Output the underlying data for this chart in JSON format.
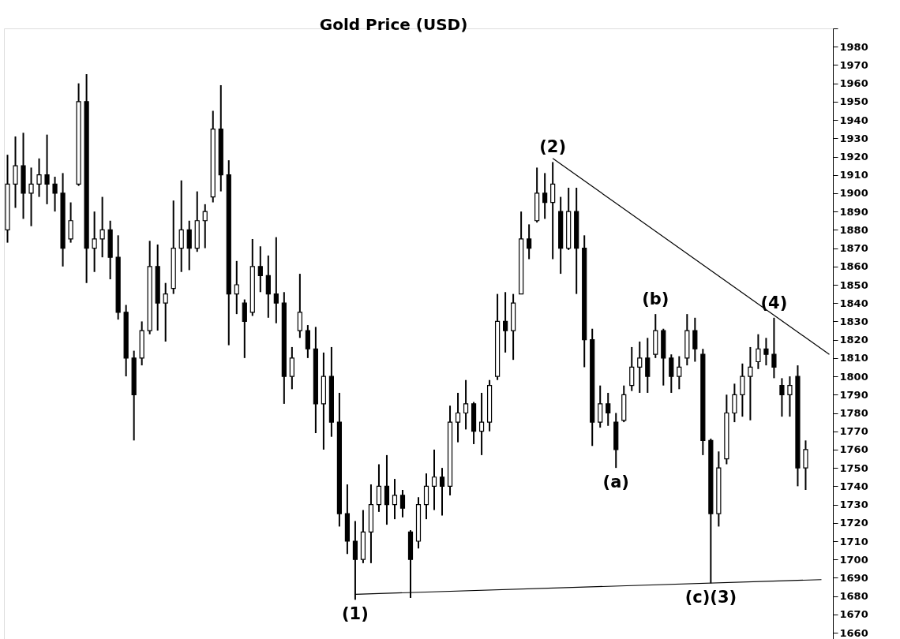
{
  "chart_data": {
    "type": "candlestick",
    "title": "Gold Price (USD)",
    "color": "#000000",
    "categories": [
      null,
      null,
      null,
      null,
      null,
      null,
      null,
      null,
      null,
      null,
      null,
      null,
      null,
      null,
      null,
      null,
      null,
      null,
      null,
      null,
      null,
      null,
      null,
      null,
      null,
      null,
      null,
      null,
      null,
      null,
      null,
      null,
      null,
      null,
      null,
      null,
      null,
      null,
      null,
      null,
      null,
      null,
      null,
      null,
      null,
      null,
      null,
      null,
      null,
      null,
      null,
      null,
      null,
      null,
      null,
      null,
      null,
      null,
      null,
      null,
      null,
      null,
      null,
      null,
      null,
      null,
      null,
      null,
      null,
      null,
      null,
      null,
      null,
      null,
      null,
      null,
      null,
      null,
      null,
      null,
      null,
      null,
      null,
      null,
      null,
      null,
      null,
      null,
      null,
      null,
      null,
      null,
      null,
      null,
      null,
      null,
      null,
      null,
      null,
      null,
      null,
      null,
      null,
      null,
      null
    ],
    "ohlc": [
      [
        1880,
        1921,
        1873,
        1905
      ],
      [
        1905,
        1931,
        1892,
        1915
      ],
      [
        1915,
        1933,
        1886,
        1900
      ],
      [
        1900,
        1914,
        1882,
        1905
      ],
      [
        1905,
        1919,
        1898,
        1910
      ],
      [
        1910,
        1932,
        1894,
        1905
      ],
      [
        1905,
        1909,
        1890,
        1900
      ],
      [
        1900,
        1911,
        1860,
        1870
      ],
      [
        1875,
        1895,
        1873,
        1885
      ],
      [
        1905,
        1960,
        1904,
        1950
      ],
      [
        1950,
        1965,
        1851,
        1870
      ],
      [
        1870,
        1890,
        1857,
        1875
      ],
      [
        1875,
        1898,
        1865,
        1880
      ],
      [
        1880,
        1885,
        1853,
        1865
      ],
      [
        1865,
        1877,
        1831,
        1835
      ],
      [
        1835,
        1839,
        1800,
        1810
      ],
      [
        1810,
        1814,
        1765,
        1790
      ],
      [
        1810,
        1830,
        1806,
        1825
      ],
      [
        1825,
        1874,
        1823,
        1860
      ],
      [
        1860,
        1872,
        1825,
        1840
      ],
      [
        1840,
        1851,
        1819,
        1845
      ],
      [
        1848,
        1896,
        1845,
        1870
      ],
      [
        1870,
        1907,
        1857,
        1880
      ],
      [
        1880,
        1885,
        1858,
        1870
      ],
      [
        1870,
        1901,
        1868,
        1885
      ],
      [
        1885,
        1894,
        1870,
        1890
      ],
      [
        1898,
        1945,
        1895,
        1935
      ],
      [
        1935,
        1959,
        1901,
        1910
      ],
      [
        1910,
        1918,
        1817,
        1845
      ],
      [
        1845,
        1863,
        1834,
        1850
      ],
      [
        1840,
        1842,
        1810,
        1830
      ],
      [
        1835,
        1875,
        1833,
        1860
      ],
      [
        1860,
        1871,
        1846,
        1855
      ],
      [
        1855,
        1866,
        1832,
        1845
      ],
      [
        1845,
        1876,
        1829,
        1840
      ],
      [
        1840,
        1846,
        1785,
        1800
      ],
      [
        1800,
        1816,
        1793,
        1810
      ],
      [
        1825,
        1856,
        1821,
        1835
      ],
      [
        1825,
        1828,
        1810,
        1815
      ],
      [
        1815,
        1827,
        1769,
        1785
      ],
      [
        1785,
        1813,
        1760,
        1800
      ],
      [
        1800,
        1816,
        1767,
        1775
      ],
      [
        1775,
        1791,
        1718,
        1725
      ],
      [
        1725,
        1741,
        1703,
        1710
      ],
      [
        1710,
        1721,
        1678,
        1700
      ],
      [
        1700,
        1727,
        1698,
        1715
      ],
      [
        1715,
        1741,
        1698,
        1730
      ],
      [
        1730,
        1752,
        1726,
        1740
      ],
      [
        1740,
        1757,
        1719,
        1730
      ],
      [
        1730,
        1744,
        1722,
        1735
      ],
      [
        1735,
        1738,
        1723,
        1728
      ],
      [
        1715,
        1716,
        1679,
        1700
      ],
      [
        1710,
        1734,
        1706,
        1730
      ],
      [
        1730,
        1747,
        1722,
        1740
      ],
      [
        1740,
        1760,
        1727,
        1745
      ],
      [
        1745,
        1750,
        1724,
        1740
      ],
      [
        1740,
        1784,
        1735,
        1775
      ],
      [
        1775,
        1791,
        1764,
        1780
      ],
      [
        1780,
        1798,
        1771,
        1785
      ],
      [
        1785,
        1786,
        1763,
        1770
      ],
      [
        1770,
        1791,
        1757,
        1775
      ],
      [
        1775,
        1798,
        1770,
        1795
      ],
      [
        1800,
        1845,
        1798,
        1830
      ],
      [
        1830,
        1846,
        1813,
        1825
      ],
      [
        1825,
        1845,
        1809,
        1840
      ],
      [
        1845,
        1890,
        1845,
        1875
      ],
      [
        1875,
        1883,
        1864,
        1870
      ],
      [
        1885,
        1914,
        1884,
        1900
      ],
      [
        1900,
        1911,
        1886,
        1895
      ],
      [
        1895,
        1917,
        1864,
        1905
      ],
      [
        1890,
        1898,
        1856,
        1870
      ],
      [
        1870,
        1903,
        1869,
        1890
      ],
      [
        1890,
        1903,
        1845,
        1870
      ],
      [
        1870,
        1877,
        1805,
        1820
      ],
      [
        1820,
        1826,
        1762,
        1775
      ],
      [
        1775,
        1795,
        1772,
        1785
      ],
      [
        1785,
        1791,
        1773,
        1780
      ],
      [
        1775,
        1780,
        1750,
        1760
      ],
      [
        1776,
        1795,
        1775,
        1790
      ],
      [
        1795,
        1816,
        1792,
        1805
      ],
      [
        1805,
        1819,
        1791,
        1810
      ],
      [
        1810,
        1821,
        1791,
        1800
      ],
      [
        1812,
        1834,
        1810,
        1825
      ],
      [
        1825,
        1826,
        1795,
        1810
      ],
      [
        1810,
        1812,
        1791,
        1800
      ],
      [
        1800,
        1811,
        1793,
        1805
      ],
      [
        1810,
        1834,
        1806,
        1825
      ],
      [
        1825,
        1832,
        1808,
        1815
      ],
      [
        1812,
        1815,
        1757,
        1765
      ],
      [
        1765,
        1766,
        1687,
        1725
      ],
      [
        1725,
        1759,
        1718,
        1750
      ],
      [
        1755,
        1790,
        1752,
        1780
      ],
      [
        1780,
        1796,
        1775,
        1790
      ],
      [
        1790,
        1807,
        1778,
        1800
      ],
      [
        1800,
        1816,
        1776,
        1805
      ],
      [
        1808,
        1823,
        1804,
        1815
      ],
      [
        1815,
        1821,
        1806,
        1812
      ],
      [
        1812,
        1832,
        1799,
        1805
      ],
      [
        1795,
        1799,
        1778,
        1790
      ],
      [
        1790,
        1800,
        1778,
        1795
      ],
      [
        1800,
        1806,
        1740,
        1750
      ],
      [
        1750,
        1765,
        1738,
        1760
      ],
      null,
      null,
      null
    ],
    "value_labels": [
      null,
      null,
      null,
      null,
      null,
      null,
      null,
      null,
      null,
      null,
      null,
      null,
      null,
      null,
      null,
      null,
      null,
      null,
      null,
      null,
      null,
      null,
      null,
      null,
      null,
      null,
      null,
      null,
      null,
      null,
      null,
      null,
      null,
      null,
      null,
      null,
      null,
      null,
      null,
      null,
      null,
      null,
      null,
      null,
      "(1)",
      null,
      null,
      null,
      null,
      null,
      null,
      null,
      null,
      null,
      null,
      null,
      null,
      null,
      null,
      null,
      null,
      null,
      null,
      null,
      null,
      null,
      null,
      null,
      null,
      "(2)",
      null,
      null,
      null,
      null,
      null,
      null,
      null,
      "(a)",
      null,
      null,
      null,
      null,
      "(b)",
      null,
      null,
      null,
      null,
      null,
      null,
      "(c)(3)",
      null,
      null,
      null,
      null,
      null,
      null,
      null,
      "(4)",
      null,
      null,
      null,
      null,
      null,
      null,
      null
    ],
    "series": [
      {
        "type": "line",
        "color": "#000000",
        "values": [
          null,
          null,
          null,
          null,
          null,
          null,
          null,
          null,
          null,
          null,
          null,
          null,
          null,
          null,
          null,
          null,
          null,
          null,
          null,
          null,
          null,
          null,
          null,
          null,
          null,
          null,
          null,
          null,
          null,
          null,
          null,
          null,
          null,
          null,
          null,
          null,
          null,
          null,
          null,
          null,
          null,
          null,
          null,
          null,
          null,
          null,
          null,
          null,
          null,
          null,
          null,
          null,
          null,
          null,
          null,
          null,
          null,
          null,
          null,
          null,
          null,
          null,
          null,
          null,
          null,
          null,
          null,
          null,
          null,
          1919,
          null,
          null,
          null,
          null,
          null,
          null,
          null,
          null,
          null,
          null,
          null,
          null,
          null,
          null,
          null,
          null,
          null,
          null,
          null,
          null,
          null,
          null,
          null,
          null,
          null,
          null,
          null,
          null,
          null,
          null,
          null,
          null,
          null,
          null,
          1812
        ]
      },
      {
        "type": "line",
        "color": "#000000",
        "values": [
          null,
          null,
          null,
          null,
          null,
          null,
          null,
          null,
          null,
          null,
          null,
          null,
          null,
          null,
          null,
          null,
          null,
          null,
          null,
          null,
          null,
          null,
          null,
          null,
          null,
          null,
          null,
          null,
          null,
          null,
          null,
          null,
          null,
          null,
          null,
          null,
          null,
          null,
          null,
          null,
          null,
          null,
          null,
          null,
          1681,
          null,
          null,
          null,
          null,
          null,
          null,
          null,
          null,
          null,
          null,
          null,
          null,
          null,
          null,
          null,
          null,
          null,
          null,
          null,
          null,
          null,
          null,
          null,
          null,
          null,
          null,
          null,
          null,
          null,
          null,
          null,
          null,
          null,
          null,
          null,
          null,
          null,
          null,
          null,
          null,
          null,
          null,
          null,
          null,
          null,
          null,
          null,
          null,
          null,
          null,
          null,
          null,
          null,
          null,
          null,
          null,
          null,
          null,
          1689,
          null
        ]
      }
    ],
    "ylim": [
      1654,
      1990
    ],
    "yticks": [
      1660,
      1670,
      1680,
      1690,
      1700,
      1710,
      1720,
      1730,
      1740,
      1750,
      1760,
      1770,
      1780,
      1790,
      1800,
      1810,
      1820,
      1830,
      1840,
      1850,
      1860,
      1870,
      1880,
      1890,
      1900,
      1910,
      1920,
      1930,
      1940,
      1950,
      1960,
      1970,
      1980,
      {
        "value": 1990,
        "label": null
      }
    ],
    "tick_labels": "y"
  }
}
